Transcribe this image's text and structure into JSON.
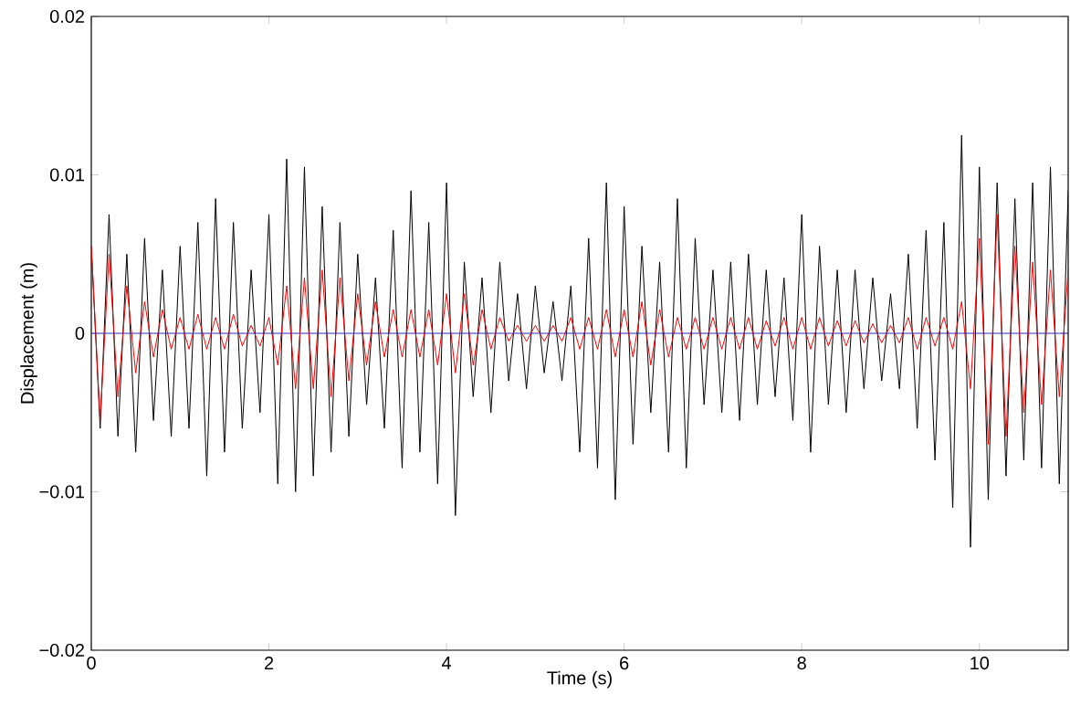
{
  "chart_data": {
    "type": "line",
    "xlabel": "Time (s)",
    "ylabel": "Displacement (m)",
    "xlim": [
      0,
      11
    ],
    "ylim": [
      -0.02,
      0.02
    ],
    "xticks": [
      0,
      2,
      4,
      6,
      8,
      10
    ],
    "yticks": [
      {
        "value": -0.02,
        "label": "−0.02"
      },
      {
        "value": -0.01,
        "label": "−0.01"
      },
      0,
      0.01,
      0.02
    ],
    "series": [
      {
        "color": "#000000",
        "x": [
          0,
          0.1,
          0.2,
          0.3,
          0.4,
          0.5,
          0.6,
          0.7,
          0.8,
          0.9,
          1,
          1.1,
          1.2,
          1.3,
          1.4,
          1.5,
          1.6,
          1.7,
          1.8,
          1.9,
          2,
          2.1,
          2.2,
          2.3,
          2.4,
          2.5,
          2.6,
          2.7,
          2.8,
          2.9,
          3,
          3.1,
          3.2,
          3.3,
          3.4,
          3.5,
          3.6,
          3.7,
          3.8,
          3.9,
          4,
          4.1,
          4.2,
          4.3,
          4.4,
          4.5,
          4.6,
          4.7,
          4.8,
          4.9,
          5,
          5.1,
          5.2,
          5.3,
          5.4,
          5.5,
          5.6,
          5.7,
          5.8,
          5.9,
          6,
          6.1,
          6.2,
          6.3,
          6.4,
          6.5,
          6.6,
          6.7,
          6.8,
          6.9,
          7,
          7.1,
          7.2,
          7.3,
          7.4,
          7.5,
          7.6,
          7.7,
          7.8,
          7.9,
          8,
          8.1,
          8.2,
          8.3,
          8.4,
          8.5,
          8.6,
          8.7,
          8.8,
          8.9,
          9,
          9.1,
          9.2,
          9.3,
          9.4,
          9.5,
          9.6,
          9.7,
          9.8,
          9.9,
          10,
          10.1,
          10.2,
          10.3,
          10.4,
          10.5,
          10.6,
          10.7,
          10.8,
          10.9,
          11
        ],
        "values": [
          0.0055,
          -0.006,
          0.0075,
          -0.0065,
          0.005,
          -0.0075,
          0.006,
          -0.0055,
          0.004,
          -0.0065,
          0.0055,
          -0.006,
          0.007,
          -0.009,
          0.0085,
          -0.0075,
          0.007,
          -0.006,
          0.004,
          -0.005,
          0.0075,
          -0.0095,
          0.011,
          -0.01,
          0.0105,
          -0.009,
          0.008,
          -0.0075,
          0.007,
          -0.0065,
          0.005,
          -0.0045,
          0.0035,
          -0.006,
          0.0065,
          -0.0085,
          0.009,
          -0.0075,
          0.007,
          -0.0095,
          0.0095,
          -0.0115,
          0.0045,
          -0.004,
          0.0035,
          -0.005,
          0.0045,
          -0.003,
          0.0025,
          -0.0035,
          0.003,
          -0.0025,
          0.002,
          -0.003,
          0.003,
          -0.0075,
          0.006,
          -0.0085,
          0.0095,
          -0.0105,
          0.008,
          -0.007,
          0.0055,
          -0.005,
          0.0045,
          -0.0075,
          0.0085,
          -0.0085,
          0.006,
          -0.0045,
          0.004,
          -0.005,
          0.0045,
          -0.0055,
          0.005,
          -0.0045,
          0.004,
          -0.004,
          0.0035,
          -0.0055,
          0.0075,
          -0.0075,
          0.0055,
          -0.0045,
          0.004,
          -0.005,
          0.004,
          -0.0035,
          0.0035,
          -0.003,
          0.0025,
          -0.0035,
          0.005,
          -0.006,
          0.0065,
          -0.008,
          0.007,
          -0.011,
          0.0125,
          -0.0135,
          0.0105,
          -0.0105,
          0.0095,
          -0.009,
          0.0085,
          -0.008,
          0.0095,
          -0.0085,
          0.0105,
          -0.0095,
          0.009
        ]
      },
      {
        "color": "#ff0000",
        "x": [
          0,
          0.1,
          0.2,
          0.3,
          0.4,
          0.5,
          0.6,
          0.7,
          0.8,
          0.9,
          1,
          1.1,
          1.2,
          1.3,
          1.4,
          1.5,
          1.6,
          1.7,
          1.8,
          1.9,
          2,
          2.1,
          2.2,
          2.3,
          2.4,
          2.5,
          2.6,
          2.7,
          2.8,
          2.9,
          3,
          3.1,
          3.2,
          3.3,
          3.4,
          3.5,
          3.6,
          3.7,
          3.8,
          3.9,
          4,
          4.1,
          4.2,
          4.3,
          4.4,
          4.5,
          4.6,
          4.7,
          4.8,
          4.9,
          5,
          5.1,
          5.2,
          5.3,
          5.4,
          5.5,
          5.6,
          5.7,
          5.8,
          5.9,
          6,
          6.1,
          6.2,
          6.3,
          6.4,
          6.5,
          6.6,
          6.7,
          6.8,
          6.9,
          7,
          7.1,
          7.2,
          7.3,
          7.4,
          7.5,
          7.6,
          7.7,
          7.8,
          7.9,
          8,
          8.1,
          8.2,
          8.3,
          8.4,
          8.5,
          8.6,
          8.7,
          8.8,
          8.9,
          9,
          9.1,
          9.2,
          9.3,
          9.4,
          9.5,
          9.6,
          9.7,
          9.8,
          9.9,
          10,
          10.1,
          10.2,
          10.3,
          10.4,
          10.5,
          10.6,
          10.7,
          10.8,
          10.9,
          11
        ],
        "values": [
          0.0055,
          -0.0055,
          0.005,
          -0.004,
          0.003,
          -0.0025,
          0.002,
          -0.0015,
          0.0015,
          -0.001,
          0.001,
          -0.001,
          0.0012,
          -0.001,
          0.001,
          -0.001,
          0.0012,
          -0.0008,
          0.0005,
          -0.0008,
          0.001,
          -0.002,
          0.003,
          -0.0035,
          0.0035,
          -0.0035,
          0.004,
          -0.004,
          0.0035,
          -0.003,
          0.0025,
          -0.002,
          0.002,
          -0.0015,
          0.0015,
          -0.0015,
          0.0015,
          -0.0015,
          0.0015,
          -0.002,
          0.0025,
          -0.0025,
          0.0025,
          -0.002,
          0.0015,
          -0.001,
          0.001,
          -0.0005,
          0.0005,
          -0.0005,
          0.0005,
          -0.0005,
          0.0005,
          -0.0005,
          0.001,
          -0.001,
          0.001,
          -0.001,
          0.0015,
          -0.0015,
          0.0015,
          -0.0015,
          0.002,
          -0.002,
          0.0015,
          -0.0015,
          0.001,
          -0.001,
          0.001,
          -0.001,
          0.001,
          -0.001,
          0.001,
          -0.001,
          0.001,
          -0.001,
          0.0008,
          -0.0008,
          0.001,
          -0.001,
          0.001,
          -0.001,
          0.001,
          -0.0008,
          0.0008,
          -0.0008,
          0.0008,
          -0.0006,
          0.0006,
          -0.0006,
          0.0005,
          -0.0006,
          0.001,
          -0.001,
          0.001,
          -0.0008,
          0.001,
          -0.001,
          0.002,
          -0.0035,
          0.006,
          -0.007,
          0.0075,
          -0.0065,
          0.0055,
          -0.005,
          0.0045,
          -0.0045,
          0.004,
          -0.004,
          0.004
        ]
      },
      {
        "color": "#2a2ab4",
        "x": [
          0,
          11
        ],
        "values": [
          0,
          0
        ]
      }
    ]
  }
}
